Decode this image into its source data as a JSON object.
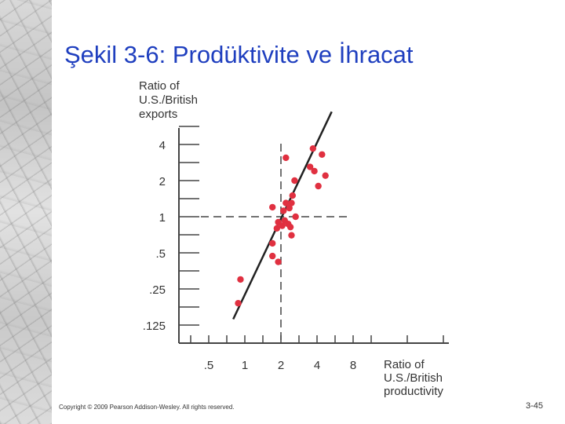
{
  "slide": {
    "title": "Şekil 3-6: Prodüktivite ve İhracat",
    "copyright": "Copyright © 2009 Pearson Addison-Wesley. All rights reserved.",
    "slide_number": "3-45"
  },
  "chart_data": {
    "type": "scatter",
    "title": "",
    "ylabel": [
      "Ratio of",
      "U.S./British",
      "exports"
    ],
    "xlabel": [
      "Ratio of",
      "U.S./British",
      "productivity"
    ],
    "x_scale": "log",
    "y_scale": "log",
    "x_ticks": [
      {
        "value": 0.5,
        "label": ".5"
      },
      {
        "value": 1,
        "label": "1"
      },
      {
        "value": 2,
        "label": "2"
      },
      {
        "value": 4,
        "label": "4"
      },
      {
        "value": 8,
        "label": "8"
      }
    ],
    "y_ticks": [
      {
        "value": 4,
        "label": "4"
      },
      {
        "value": 2,
        "label": "2"
      },
      {
        "value": 1,
        "label": "1"
      },
      {
        "value": 0.5,
        "label": ".5"
      },
      {
        "value": 0.25,
        "label": ".25"
      },
      {
        "value": 0.125,
        "label": ".125"
      }
    ],
    "xlim": [
      0.25,
      14
    ],
    "ylim": [
      0.09,
      8
    ],
    "reference_lines": {
      "x": 2,
      "y": 1,
      "style": "dashed"
    },
    "points": [
      {
        "x": 3.7,
        "y": 3.7
      },
      {
        "x": 4.4,
        "y": 3.3
      },
      {
        "x": 2.2,
        "y": 3.1
      },
      {
        "x": 3.5,
        "y": 2.6
      },
      {
        "x": 3.8,
        "y": 2.4
      },
      {
        "x": 4.7,
        "y": 2.2
      },
      {
        "x": 2.6,
        "y": 2.0
      },
      {
        "x": 4.1,
        "y": 1.8
      },
      {
        "x": 2.5,
        "y": 1.5
      },
      {
        "x": 2.2,
        "y": 1.3
      },
      {
        "x": 2.45,
        "y": 1.3
      },
      {
        "x": 1.7,
        "y": 1.2
      },
      {
        "x": 2.35,
        "y": 1.18
      },
      {
        "x": 2.1,
        "y": 1.12
      },
      {
        "x": 2.65,
        "y": 1.0
      },
      {
        "x": 2.15,
        "y": 0.93
      },
      {
        "x": 1.9,
        "y": 0.9
      },
      {
        "x": 2.3,
        "y": 0.87
      },
      {
        "x": 2.05,
        "y": 0.84
      },
      {
        "x": 1.85,
        "y": 0.8
      },
      {
        "x": 2.4,
        "y": 0.82
      },
      {
        "x": 2.45,
        "y": 0.7
      },
      {
        "x": 1.7,
        "y": 0.6
      },
      {
        "x": 1.7,
        "y": 0.47
      },
      {
        "x": 1.9,
        "y": 0.42
      },
      {
        "x": 0.92,
        "y": 0.3
      },
      {
        "x": 0.88,
        "y": 0.19
      }
    ],
    "fit_line": [
      {
        "x": 0.8,
        "y": 0.14
      },
      {
        "x": 5.3,
        "y": 7.5
      }
    ],
    "colors": {
      "points": "#e03040",
      "axis": "#444444",
      "fit_line": "#222222"
    }
  }
}
